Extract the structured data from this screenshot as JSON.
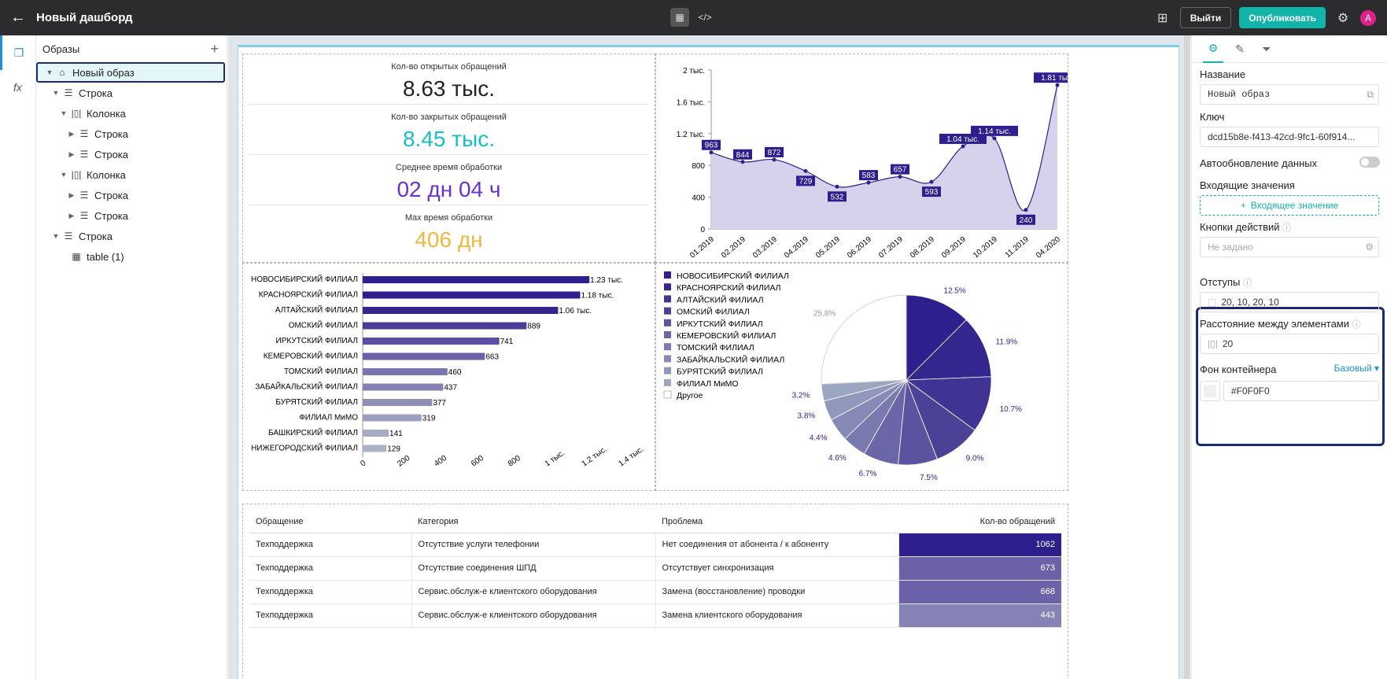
{
  "topbar": {
    "title": "Новый дашборд",
    "exit_label": "Выйти",
    "publish_label": "Опубликовать",
    "avatar_letter": "A"
  },
  "tree": {
    "header": "Образы",
    "items": [
      {
        "label": "Новый образ",
        "indent": 0,
        "icon": "home-icon",
        "arrow": "▼",
        "selected": true
      },
      {
        "label": "Строка",
        "indent": 1,
        "icon": "row-icon",
        "arrow": "▼"
      },
      {
        "label": "Колонка",
        "indent": 2,
        "icon": "column-icon",
        "arrow": "▼"
      },
      {
        "label": "Строка",
        "indent": 3,
        "icon": "row-icon",
        "arrow": "▶"
      },
      {
        "label": "Строка",
        "indent": 3,
        "icon": "row-icon",
        "arrow": "▶"
      },
      {
        "label": "Колонка",
        "indent": 2,
        "icon": "column-icon",
        "arrow": "▼"
      },
      {
        "label": "Строка",
        "indent": 3,
        "icon": "row-icon",
        "arrow": "▶"
      },
      {
        "label": "Строка",
        "indent": 3,
        "icon": "row-icon",
        "arrow": "▶"
      },
      {
        "label": "Строка",
        "indent": 1,
        "icon": "row-icon",
        "arrow": "▼"
      },
      {
        "label": "table (1)",
        "indent": 2,
        "icon": "table-icon",
        "arrow": ""
      }
    ]
  },
  "kpis": [
    {
      "label": "Кол-во открытых обращений",
      "value": "8.63 тыс.",
      "color": "#222222"
    },
    {
      "label": "Кол-во закрытых обращений",
      "value": "8.45 тыс.",
      "color": "#16bfc8"
    },
    {
      "label": "Среднее время обработки",
      "value": "02 дн 04 ч",
      "color": "#6b2fd6"
    },
    {
      "label": "Max время обработки",
      "value": "406 дн",
      "color": "#f2b63e"
    }
  ],
  "chart_data": [
    {
      "type": "area",
      "x": [
        "01.2019",
        "02.2019",
        "03.2019",
        "04.2019",
        "05.2019",
        "06.2019",
        "07.2019",
        "08.2019",
        "09.2019",
        "10.2019",
        "11.2019",
        "04.2020"
      ],
      "values": [
        963,
        844,
        872,
        729,
        532,
        583,
        657,
        593,
        1040,
        1140,
        240,
        1810
      ],
      "data_labels": [
        "963",
        "844",
        "872",
        "729",
        "532",
        "583",
        "657",
        "593",
        "1.04 тыс.",
        "1.14 тыс.",
        "240",
        "1.81 тыс."
      ],
      "y_ticks": [
        "0",
        "400",
        "800",
        "1.2 тыс.",
        "1.6 тыс.",
        "2 тыс."
      ],
      "ylim": [
        0,
        2000
      ],
      "color": "#2e1f8e"
    },
    {
      "type": "bar",
      "orientation": "horizontal",
      "categories": [
        "НОВОСИБИРСКИЙ ФИЛИАЛ",
        "КРАСНОЯРСКИЙ ФИЛИАЛ",
        "АЛТАЙСКИЙ ФИЛИАЛ",
        "ОМСКИЙ ФИЛИАЛ",
        "ИРКУТСКИЙ ФИЛИАЛ",
        "КЕМЕРОВСКИЙ ФИЛИАЛ",
        "ТОМСКИЙ ФИЛИАЛ",
        "ЗАБАЙКАЛЬСКИЙ ФИЛИАЛ",
        "БУРЯТСКИЙ ФИЛИАЛ",
        "ФИЛИАЛ МиМО",
        "БАШКИРСКИЙ ФИЛИАЛ",
        "НИЖЕГОРОДСКИЙ ФИЛИАЛ"
      ],
      "values": [
        1230,
        1180,
        1060,
        889,
        741,
        663,
        460,
        437,
        377,
        319,
        141,
        129
      ],
      "data_labels": [
        "1.23 тыс.",
        "1.18 тыс.",
        "1.06 тыс.",
        "889",
        "741",
        "663",
        "460",
        "437",
        "377",
        "319",
        "141",
        "129"
      ],
      "x_ticks": [
        "0",
        "200",
        "400",
        "600",
        "800",
        "1 тыс.",
        "1.2 тыс.",
        "1.4 тыс."
      ],
      "xlim": [
        0,
        1400
      ],
      "colors": [
        "#2e1f8e",
        "#2e1f8e",
        "#34258f",
        "#4a3d97",
        "#5a4fa0",
        "#6a61a8",
        "#7a74b0",
        "#8583b5",
        "#8f8fb9",
        "#9ba0c0",
        "#a4adc4",
        "#a9b4c7"
      ]
    },
    {
      "type": "pie",
      "legend": [
        "НОВОСИБИРСКИЙ ФИЛИАЛ",
        "КРАСНОЯРСКИЙ ФИЛИАЛ",
        "АЛТАЙСКИЙ ФИЛИАЛ",
        "ОМСКИЙ ФИЛИАЛ",
        "ИРКУТСКИЙ ФИЛИАЛ",
        "КЕМЕРОВСКИЙ ФИЛИАЛ",
        "ТОМСКИЙ ФИЛИАЛ",
        "ЗАБАЙКАЛЬСКИЙ ФИЛИАЛ",
        "БУРЯТСКИЙ ФИЛИАЛ",
        "ФИЛИАЛ МиМО",
        "Другое"
      ],
      "values": [
        12.5,
        11.9,
        10.7,
        9.0,
        7.5,
        6.7,
        4.6,
        4.4,
        3.8,
        3.2,
        25.8
      ],
      "data_labels": [
        "12.5%",
        "11.9%",
        "10.7%",
        "9.0%",
        "7.5%",
        "6.7%",
        "4.6%",
        "4.4%",
        "3.8%",
        "3.2%",
        "25.8%"
      ],
      "colors": [
        "#2e1f8e",
        "#34268f",
        "#3f3493",
        "#4b4298",
        "#5a53a0",
        "#6a66a8",
        "#7a7ab0",
        "#8789b6",
        "#9198bb",
        "#9ba6c0",
        "#ffffff"
      ],
      "legend_position": "left"
    }
  ],
  "table": {
    "headers": [
      "Обращение",
      "Категория",
      "Проблема",
      "Кол-во обращений"
    ],
    "rows": [
      {
        "c1": "Техподдержка",
        "c2": "Отсутствие услуги телефонии",
        "c3": "Нет соединения от абонента / к абоненту",
        "c4": "1062",
        "color": "#2e1f8e"
      },
      {
        "c1": "Техподдержка",
        "c2": "Отсутствие соединения  ШПД",
        "c3": "Отсутствует синхронизация",
        "c4": "673",
        "color": "#6a61a8"
      },
      {
        "c1": "Техподдержка",
        "c2": "Сервис.обслуж-е клиентского оборудования",
        "c3": "Замена (восстановление) проводки",
        "c4": "668",
        "color": "#6b62a9"
      },
      {
        "c1": "Техподдержка",
        "c2": "Сервис.обслуж-е клиентского оборудования",
        "c3": "Замена клиентского оборудования",
        "c4": "443",
        "color": "#8583b5"
      }
    ]
  },
  "props": {
    "name_label": "Название",
    "name_value": "Новый образ",
    "key_label": "Ключ",
    "key_value": "dcd15b8e-f413-42cd-9fc1-60f914...",
    "autoupdate_label": "Автообновление данных",
    "incoming_label": "Входящие значения",
    "incoming_button": "Входящее значение",
    "actions_label": "Кнопки действий",
    "actions_placeholder": "Не задано",
    "padding_label": "Отступы",
    "padding_value": "20, 10, 20, 10",
    "gap_label": "Расстояние между элементами",
    "gap_value": "20",
    "bg_label": "Фон контейнера",
    "bg_mode": "Базовый",
    "bg_value": "#F0F0F0"
  }
}
